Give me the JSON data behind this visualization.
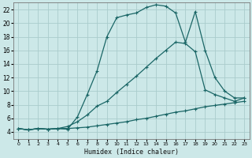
{
  "xlabel": "Humidex (Indice chaleur)",
  "ylabel": "",
  "bg_color": "#cce8e8",
  "grid_color": "#aacccc",
  "line_color": "#1a6666",
  "xlim": [
    -0.5,
    23.5
  ],
  "ylim": [
    3.0,
    23.0
  ],
  "xticks": [
    0,
    1,
    2,
    3,
    4,
    5,
    6,
    7,
    8,
    9,
    10,
    11,
    12,
    13,
    14,
    15,
    16,
    17,
    18,
    19,
    20,
    21,
    22,
    23
  ],
  "yticks": [
    4,
    6,
    8,
    10,
    12,
    14,
    16,
    18,
    20,
    22
  ],
  "line1_x": [
    0,
    1,
    2,
    3,
    4,
    5,
    6,
    7,
    8,
    9,
    10,
    11,
    12,
    13,
    14,
    15,
    16,
    17,
    18,
    19,
    20,
    21,
    22,
    23
  ],
  "line1_y": [
    4.5,
    4.3,
    4.5,
    4.4,
    4.5,
    4.4,
    6.2,
    9.5,
    13.0,
    18.0,
    20.8,
    21.2,
    21.5,
    22.3,
    22.7,
    22.5,
    21.5,
    17.2,
    21.7,
    16.0,
    12.0,
    10.0,
    9.0,
    9.0
  ],
  "line2_x": [
    0,
    1,
    2,
    3,
    4,
    5,
    6,
    7,
    8,
    9,
    10,
    11,
    12,
    13,
    14,
    15,
    16,
    17,
    18,
    19,
    20,
    21,
    22,
    23
  ],
  "line2_y": [
    4.5,
    4.3,
    4.5,
    4.4,
    4.5,
    4.8,
    5.5,
    6.5,
    7.8,
    8.5,
    9.8,
    11.0,
    12.2,
    13.5,
    14.8,
    16.0,
    17.2,
    17.0,
    15.8,
    10.2,
    9.5,
    9.0,
    8.5,
    9.0
  ],
  "line3_x": [
    0,
    1,
    2,
    3,
    4,
    5,
    6,
    7,
    8,
    9,
    10,
    11,
    12,
    13,
    14,
    15,
    16,
    17,
    18,
    19,
    20,
    21,
    22,
    23
  ],
  "line3_y": [
    4.5,
    4.3,
    4.5,
    4.4,
    4.5,
    4.5,
    4.6,
    4.7,
    4.9,
    5.1,
    5.3,
    5.5,
    5.8,
    6.0,
    6.3,
    6.6,
    6.9,
    7.1,
    7.4,
    7.7,
    7.9,
    8.1,
    8.3,
    8.5
  ]
}
